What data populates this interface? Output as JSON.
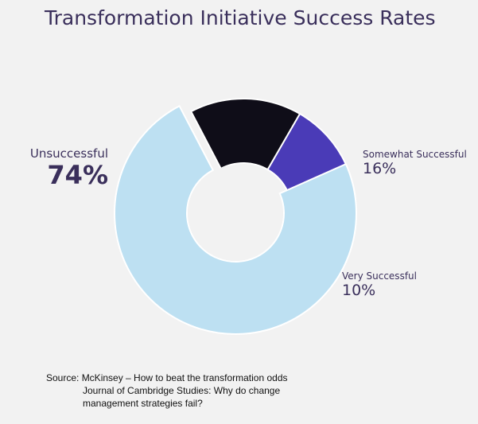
{
  "chart_data": {
    "type": "pie",
    "title": "Transformation Initiative Success Rates",
    "slices": [
      {
        "label": "Very Successful",
        "value": 10,
        "display": "10%",
        "color": "#4a3bb7"
      },
      {
        "label": "Unsuccessful",
        "value": 74,
        "display": "74%",
        "color": "#bde0f2"
      },
      {
        "label": "Somewhat Successful",
        "value": 16,
        "display": "16%",
        "color": "#0f0d18"
      }
    ],
    "donut": true
  },
  "source": {
    "line1": "Source: McKinsey – How to beat the transformation odds",
    "line2": "Journal of Cambridge Studies:  Why do change",
    "line3": "management strategies fail?"
  }
}
